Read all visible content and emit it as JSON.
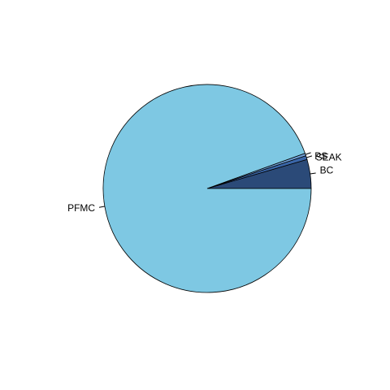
{
  "chart_data": {
    "type": "pie",
    "title": "",
    "start_angle_deg": 0,
    "direction": "counterclockwise",
    "slices": [
      {
        "label": "BC",
        "value": 4.5,
        "color": "#2b4a78"
      },
      {
        "label": "SEAK",
        "value": 0.6,
        "color": "#3a66a8"
      },
      {
        "label": "PS",
        "value": 0.4,
        "color": "#6f9fd6"
      },
      {
        "label": "PFMC",
        "value": 94.5,
        "color": "#7ec8e3"
      }
    ]
  }
}
